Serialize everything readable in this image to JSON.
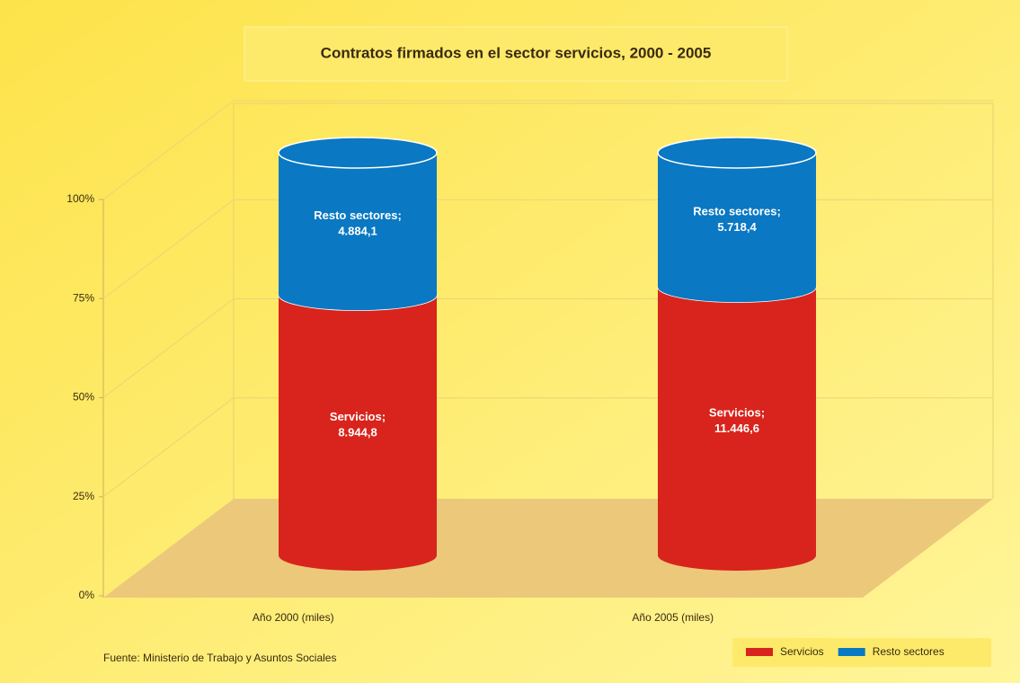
{
  "chart_data": {
    "type": "bar",
    "stacking": "percent",
    "shape": "cylinder",
    "title": "Contratos firmados en el sector servicios, 2000 - 2005",
    "categories": [
      "Año 2000 (miles)",
      "Año 2005 (miles)"
    ],
    "series": [
      {
        "name": "Servicios",
        "color": "#d8241c",
        "values": [
          8944.8,
          11446.6
        ],
        "value_labels": [
          "8.944,8",
          "11.446,6"
        ]
      },
      {
        "name": "Resto sectores",
        "color": "#0a78c2",
        "values": [
          4884.1,
          5718.4
        ],
        "value_labels": [
          "4.884,1",
          "5.718,4"
        ]
      }
    ],
    "label_separator": ";",
    "ylim": [
      0,
      100
    ],
    "yticks": [
      {
        "value": 0,
        "label": "0%"
      },
      {
        "value": 25,
        "label": "25%"
      },
      {
        "value": 50,
        "label": "50%"
      },
      {
        "value": 75,
        "label": "75%"
      },
      {
        "value": 100,
        "label": "100%"
      }
    ],
    "grid": true,
    "legend": "bottom-right",
    "source": "Fuente: Ministerio de Trabajo y Asuntos Sociales"
  }
}
